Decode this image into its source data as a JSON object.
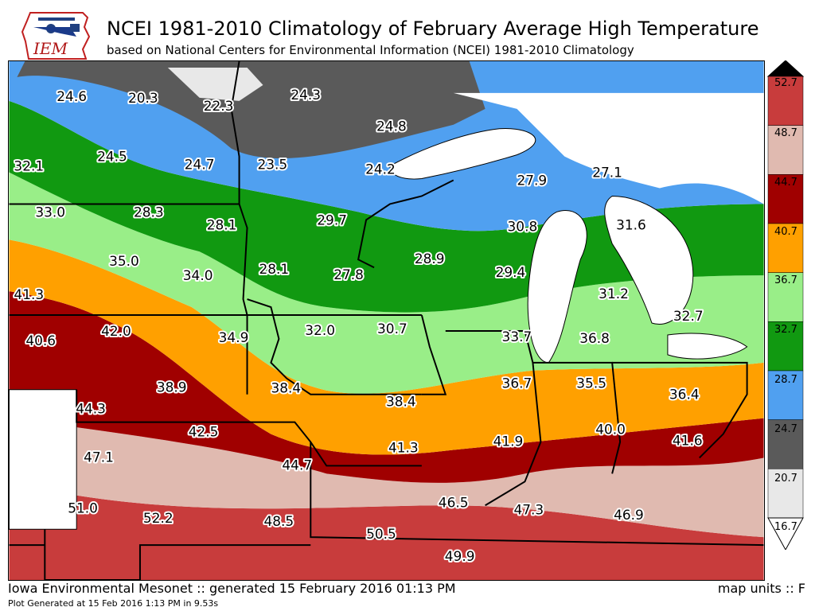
{
  "header": {
    "logo_text": "IEM",
    "title": "NCEI 1981-2010 Climatology of February Average High Temperature",
    "subtitle": "based on National Centers for Environmental Information (NCEI) 1981-2010 Climatology"
  },
  "footer": {
    "generated": "Iowa Environmental Mesonet :: generated 15 February 2016 01:13 PM",
    "units": "map units :: F",
    "plot_note": "Plot Generated at 15 Feb 2016 1:13 PM in 9.53s"
  },
  "colorbar": {
    "levels": [
      "16.7",
      "20.7",
      "24.7",
      "28.7",
      "32.7",
      "36.7",
      "40.7",
      "44.7",
      "48.7",
      "52.7"
    ],
    "colors": [
      "#e8e8e8",
      "#5a5a5a",
      "#50a0f0",
      "#119911",
      "#99ee88",
      "#ffa000",
      "#a00000",
      "#e0bab0",
      "#c83c3c"
    ]
  },
  "map": {
    "values": [
      {
        "v": "24.6"
      },
      {
        "v": "20.3"
      },
      {
        "v": "22.3"
      },
      {
        "v": "24.3"
      },
      {
        "v": "24.8"
      },
      {
        "v": "32.1"
      },
      {
        "v": "24.5"
      },
      {
        "v": "24.7"
      },
      {
        "v": "23.5"
      },
      {
        "v": "24.2"
      },
      {
        "v": "27.9"
      },
      {
        "v": "27.1"
      },
      {
        "v": "33.0"
      },
      {
        "v": "28.3"
      },
      {
        "v": "28.1"
      },
      {
        "v": "29.7"
      },
      {
        "v": "30.8"
      },
      {
        "v": "31.6"
      },
      {
        "v": "35.0"
      },
      {
        "v": "34.0"
      },
      {
        "v": "28.1"
      },
      {
        "v": "27.8"
      },
      {
        "v": "28.9"
      },
      {
        "v": "29.4"
      },
      {
        "v": "41.3"
      },
      {
        "v": "31.2"
      },
      {
        "v": "32.7"
      },
      {
        "v": "40.6"
      },
      {
        "v": "42.0"
      },
      {
        "v": "34.9"
      },
      {
        "v": "32.0"
      },
      {
        "v": "30.7"
      },
      {
        "v": "33.7"
      },
      {
        "v": "36.8"
      },
      {
        "v": "38.9"
      },
      {
        "v": "38.4"
      },
      {
        "v": "36.7"
      },
      {
        "v": "35.5"
      },
      {
        "v": "36.4"
      },
      {
        "v": "44.3"
      },
      {
        "v": "38.4"
      },
      {
        "v": "42.5"
      },
      {
        "v": "40.0"
      },
      {
        "v": "47.1"
      },
      {
        "v": "41.3"
      },
      {
        "v": "41.9"
      },
      {
        "v": "41.6"
      },
      {
        "v": "44.7"
      },
      {
        "v": "46.5"
      },
      {
        "v": "51.0"
      },
      {
        "v": "47.3"
      },
      {
        "v": "46.9"
      },
      {
        "v": "52.2"
      },
      {
        "v": "48.5"
      },
      {
        "v": "50.5"
      },
      {
        "v": "49.9"
      }
    ]
  }
}
